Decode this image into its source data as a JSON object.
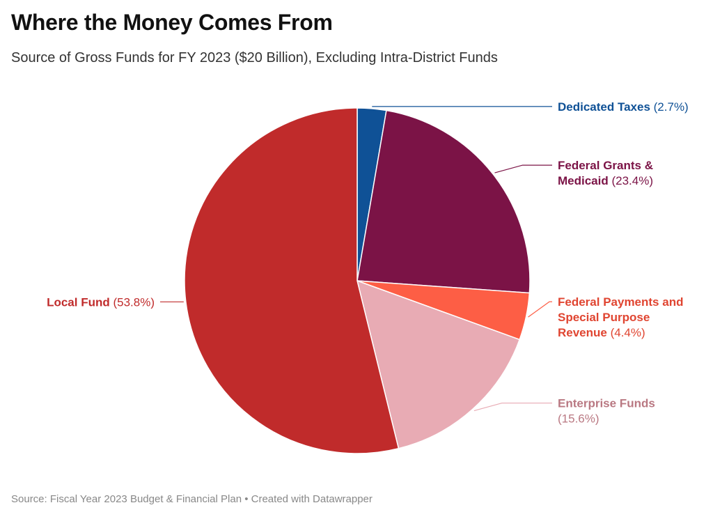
{
  "title": "Where the Money Comes From",
  "subtitle": "Source of Gross Funds for FY 2023 ($20 Billion), Excluding Intra-District Funds",
  "footer": {
    "source": "Source: Fiscal Year 2023 Budget & Financial Plan",
    "separator": " • ",
    "credit": "Created with Datawrapper"
  },
  "chart_data": {
    "type": "pie",
    "title": "Where the Money Comes From",
    "subtitle": "Source of Gross Funds for FY 2023 ($20 Billion), Excluding Intra-District Funds",
    "start_angle_deg": 0,
    "direction": "clockwise",
    "slices": [
      {
        "name_lines": [
          "Dedicated Taxes"
        ],
        "pct_label": "(2.7%)",
        "value": 2.7,
        "color": "#0f5196",
        "label_color": "#0f5196",
        "label_side": "right"
      },
      {
        "name_lines": [
          "Federal Grants &",
          "Medicaid"
        ],
        "pct_label": "(23.4%)",
        "value": 23.4,
        "color": "#7b1346",
        "label_color": "#7b1346",
        "label_side": "right"
      },
      {
        "name_lines": [
          "Federal Payments and",
          "Special Purpose",
          "Revenue"
        ],
        "pct_label": "(4.4%)",
        "value": 4.4,
        "color": "#fd5e45",
        "label_color": "#e04531",
        "label_side": "right"
      },
      {
        "name_lines": [
          "Enterprise Funds"
        ],
        "pct_label": "(15.6%)",
        "pct_own_line": true,
        "value": 15.6,
        "color": "#e8abb4",
        "label_color": "#b97882",
        "label_side": "right"
      },
      {
        "name_lines": [
          "Local Fund"
        ],
        "pct_label": "(53.8%)",
        "value": 53.8,
        "color": "#c02b2b",
        "label_color": "#c02b2b",
        "label_side": "left"
      }
    ]
  }
}
